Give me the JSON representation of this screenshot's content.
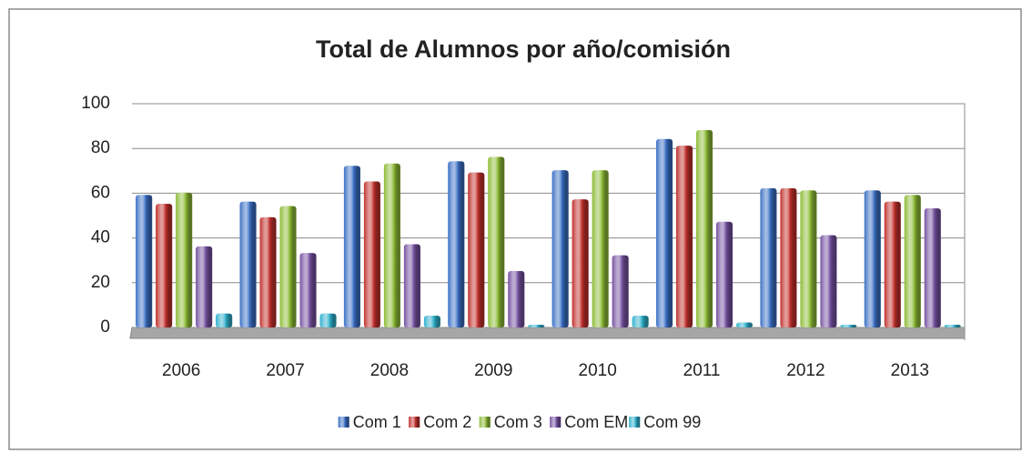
{
  "chart_data": {
    "type": "bar",
    "title": "Total de Alumnos por año/comisión",
    "categories": [
      "2006",
      "2007",
      "2008",
      "2009",
      "2010",
      "2011",
      "2012",
      "2013"
    ],
    "series": [
      {
        "name": "Com 1",
        "color": "#3a6fc4",
        "values": [
          58,
          55,
          71,
          73,
          69,
          83,
          61,
          60
        ]
      },
      {
        "name": "Com 2",
        "color": "#c0302c",
        "values": [
          54,
          48,
          64,
          68,
          56,
          80,
          61,
          55
        ]
      },
      {
        "name": "Com 3",
        "color": "#8dbb36",
        "values": [
          59,
          53,
          72,
          75,
          69,
          87,
          60,
          58
        ]
      },
      {
        "name": "Com EM",
        "color": "#7550a0",
        "values": [
          35,
          32,
          36,
          24,
          31,
          46,
          40,
          52
        ]
      },
      {
        "name": "Com 99",
        "color": "#2fb0cc",
        "values": [
          5,
          5,
          4,
          0,
          4,
          1,
          0,
          0
        ]
      }
    ],
    "ylim": [
      0,
      100
    ],
    "yticks": [
      0,
      20,
      40,
      60,
      80,
      100
    ],
    "grid": true,
    "legend": "bottom"
  }
}
